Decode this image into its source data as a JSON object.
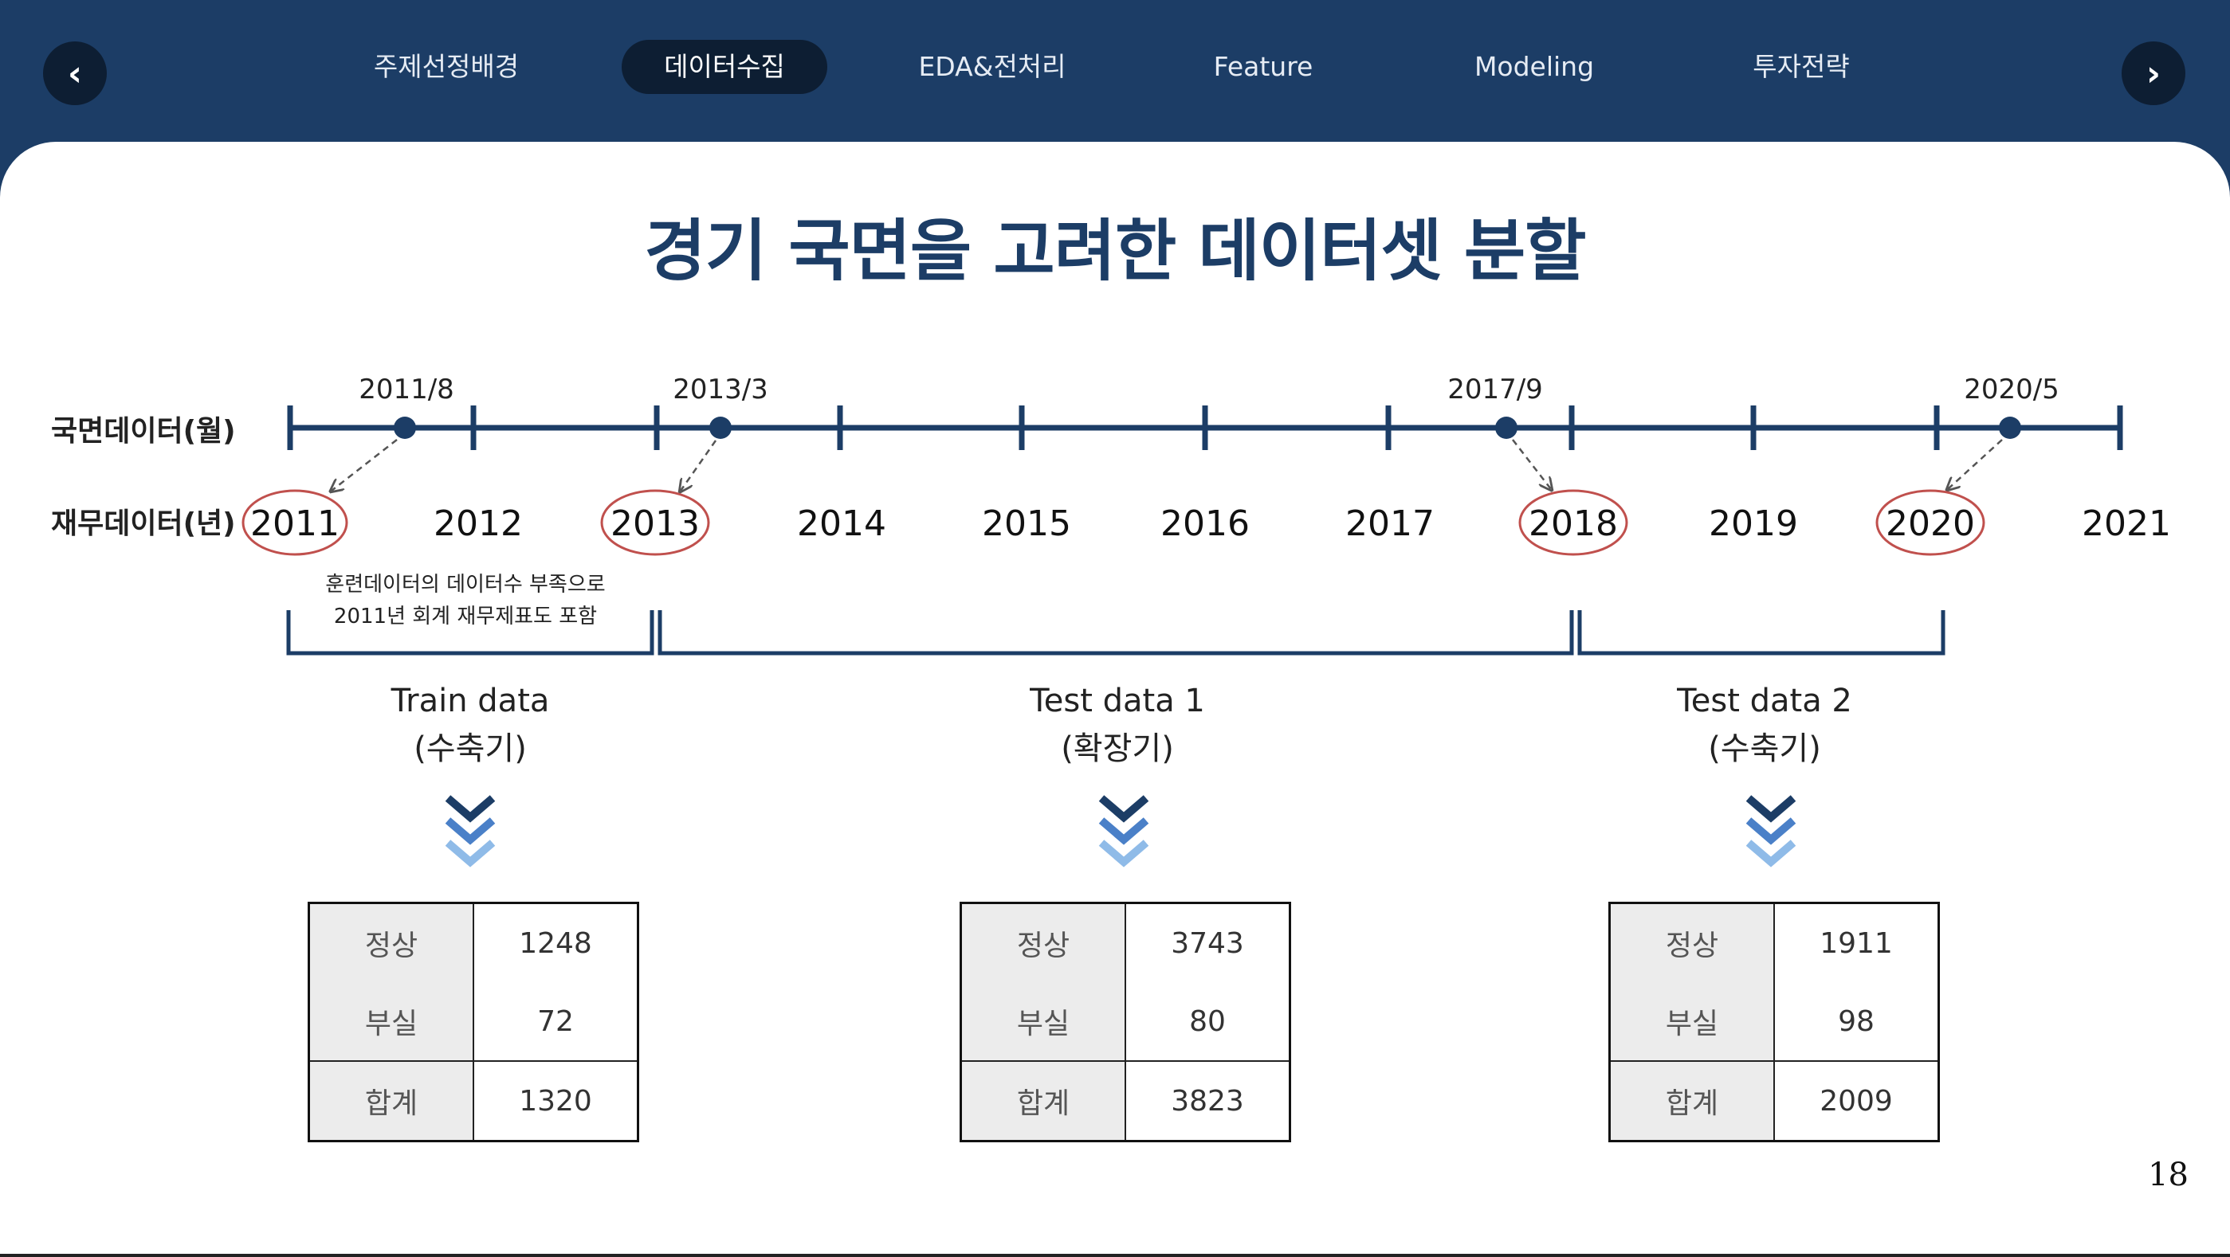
{
  "nav": {
    "tabs": [
      {
        "label": "주제선정배경",
        "active": false
      },
      {
        "label": "데이터수집",
        "active": true
      },
      {
        "label": "EDA&전처리",
        "active": false
      },
      {
        "label": "Feature",
        "active": false
      },
      {
        "label": "Modeling",
        "active": false
      },
      {
        "label": "투자전략",
        "active": false
      }
    ],
    "prev_icon": "chevron-left-icon",
    "next_icon": "chevron-right-icon"
  },
  "title": "경기 국면을 고려한 데이터셋 분할",
  "timeline": {
    "monthly_label": "국면데이터(월)",
    "annual_label": "재무데이터(년)",
    "years": [
      "2011",
      "2012",
      "2013",
      "2014",
      "2015",
      "2016",
      "2017",
      "2018",
      "2019",
      "2020",
      "2021"
    ],
    "highlighted_years": [
      "2011",
      "2013",
      "2018",
      "2020"
    ],
    "points": [
      "2011/8",
      "2013/3",
      "2017/9",
      "2020/5"
    ],
    "note_line1": "훈련데이터의 데이터수 부족으로",
    "note_line2": "2011년 회계 재무제표도 포함"
  },
  "sets": [
    {
      "name": "Train data",
      "phase": "(수축기)",
      "rows": [
        {
          "k": "정상",
          "v": "1248"
        },
        {
          "k": "부실",
          "v": "72"
        }
      ],
      "total": {
        "k": "합계",
        "v": "1320"
      }
    },
    {
      "name": "Test data 1",
      "phase": "(확장기)",
      "rows": [
        {
          "k": "정상",
          "v": "3743"
        },
        {
          "k": "부실",
          "v": "80"
        }
      ],
      "total": {
        "k": "합계",
        "v": "3823"
      }
    },
    {
      "name": "Test data 2",
      "phase": "(수축기)",
      "rows": [
        {
          "k": "정상",
          "v": "1911"
        },
        {
          "k": "부실",
          "v": "98"
        }
      ],
      "total": {
        "k": "합계",
        "v": "2009"
      }
    }
  ],
  "colors": {
    "navy": "#1c3d66",
    "dark": "#0d1e33",
    "highlight_circle": "#c0504d",
    "chevron_light": "#8fbbe8",
    "chevron_mid": "#4a80c8"
  },
  "page_number": "18"
}
